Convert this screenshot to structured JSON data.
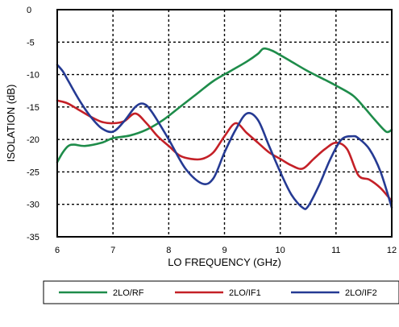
{
  "chart_data": {
    "type": "line",
    "xlabel": "LO FREQUENCY (GHz)",
    "ylabel": "ISOLATION (dB)",
    "xlim": [
      6,
      12
    ],
    "ylim": [
      -35,
      0
    ],
    "grid": "dotted",
    "legend_position": "bottom",
    "xticks": [
      6,
      7,
      8,
      9,
      10,
      11,
      12
    ],
    "xtick_labels": [
      "6",
      "7",
      "8",
      "9",
      "10",
      "11",
      "12"
    ],
    "yticks": [
      0,
      -5,
      -10,
      -15,
      -20,
      -25,
      -30,
      -35
    ],
    "ytick_labels": [
      "0",
      "-5",
      "-10",
      "-15",
      "-20",
      "-25",
      "-30",
      "-35"
    ],
    "series": [
      {
        "name": "2LO/RF",
        "color": "#1e8c4a",
        "x": [
          6.0,
          6.1,
          6.2,
          6.3,
          6.5,
          6.8,
          7.0,
          7.3,
          7.6,
          7.9,
          8.2,
          8.5,
          8.8,
          9.1,
          9.4,
          9.6,
          9.7,
          9.85,
          10.0,
          10.2,
          10.5,
          10.8,
          11.0,
          11.3,
          11.5,
          11.7,
          11.9,
          12.0
        ],
        "y": [
          -23.5,
          -22.0,
          -21.0,
          -20.8,
          -21.0,
          -20.5,
          -19.8,
          -19.4,
          -18.5,
          -17.0,
          -15.0,
          -13.0,
          -11.0,
          -9.5,
          -8.0,
          -6.8,
          -6.0,
          -6.3,
          -7.0,
          -8.0,
          -9.5,
          -10.8,
          -11.7,
          -13.2,
          -15.0,
          -17.0,
          -18.8,
          -18.5
        ]
      },
      {
        "name": "2LO/IF1",
        "color": "#c42027",
        "x": [
          6.0,
          6.1,
          6.2,
          6.4,
          6.6,
          6.8,
          7.0,
          7.2,
          7.4,
          7.6,
          7.8,
          8.0,
          8.2,
          8.4,
          8.6,
          8.8,
          9.0,
          9.2,
          9.4,
          9.6,
          9.8,
          10.0,
          10.2,
          10.4,
          10.6,
          10.8,
          11.0,
          11.2,
          11.4,
          11.6,
          11.8,
          12.0
        ],
        "y": [
          -14.0,
          -14.2,
          -14.5,
          -15.5,
          -16.5,
          -17.3,
          -17.5,
          -17.2,
          -16.0,
          -17.5,
          -19.5,
          -21.0,
          -22.5,
          -23.0,
          -23.0,
          -22.0,
          -19.5,
          -17.5,
          -19.0,
          -20.5,
          -22.0,
          -23.0,
          -24.0,
          -24.5,
          -23.0,
          -21.5,
          -20.5,
          -21.5,
          -25.5,
          -26.2,
          -27.5,
          -29.5
        ]
      },
      {
        "name": "2LO/IF2",
        "color": "#253a93",
        "x": [
          6.0,
          6.1,
          6.2,
          6.4,
          6.6,
          6.8,
          7.0,
          7.2,
          7.4,
          7.55,
          7.7,
          8.0,
          8.3,
          8.6,
          8.8,
          9.0,
          9.2,
          9.4,
          9.6,
          9.8,
          10.0,
          10.2,
          10.4,
          10.5,
          10.7,
          10.9,
          11.1,
          11.3,
          11.4,
          11.6,
          11.8,
          12.0
        ],
        "y": [
          -8.5,
          -9.5,
          -11.0,
          -14.0,
          -16.5,
          -18.3,
          -18.8,
          -17.2,
          -15.0,
          -14.5,
          -15.8,
          -20.0,
          -24.5,
          -26.8,
          -26.0,
          -22.0,
          -18.5,
          -16.0,
          -17.0,
          -21.0,
          -25.0,
          -28.5,
          -30.5,
          -30.3,
          -27.0,
          -23.0,
          -20.0,
          -19.5,
          -19.8,
          -21.5,
          -25.0,
          -30.5
        ]
      }
    ]
  }
}
